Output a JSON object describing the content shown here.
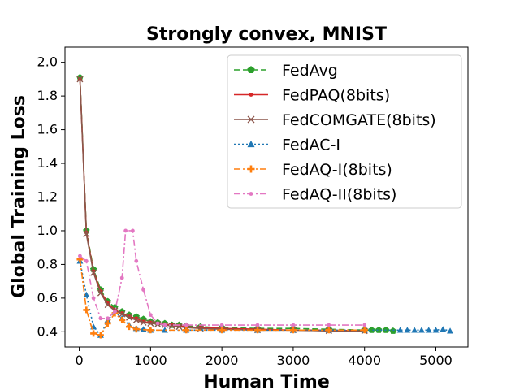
{
  "chart_data": {
    "type": "line",
    "title": "Strongly convex, MNIST",
    "xlabel": "Human Time",
    "ylabel": "Global Training Loss",
    "xlim": [
      -200,
      5450
    ],
    "ylim": [
      0.31,
      2.09
    ],
    "xticks": [
      0,
      1000,
      2000,
      3000,
      4000,
      5000
    ],
    "yticks": [
      0.4,
      0.6,
      0.8,
      1.0,
      1.2,
      1.4,
      1.6,
      1.8,
      2.0
    ],
    "xtick_labels": [
      "0",
      "1000",
      "2000",
      "3000",
      "4000",
      "5000"
    ],
    "ytick_labels": [
      "0.4",
      "0.6",
      "0.8",
      "1.0",
      "1.2",
      "1.4",
      "1.6",
      "1.8",
      "2.0"
    ],
    "legend_position": "upper-right",
    "grid": false,
    "series": [
      {
        "name": "FedAvg",
        "color": "#2ca02c",
        "linestyle": "dashed",
        "marker": "pentagon",
        "x": [
          10,
          100,
          200,
          300,
          400,
          500,
          600,
          700,
          800,
          900,
          1000,
          1100,
          1200,
          1300,
          1400,
          1500,
          1700,
          2000,
          2500,
          3000,
          3500,
          4000,
          4100,
          4200,
          4300,
          4400
        ],
        "y": [
          1.91,
          1.0,
          0.77,
          0.65,
          0.58,
          0.545,
          0.52,
          0.5,
          0.49,
          0.475,
          0.46,
          0.455,
          0.45,
          0.44,
          0.44,
          0.435,
          0.43,
          0.425,
          0.42,
          0.42,
          0.415,
          0.41,
          0.41,
          0.41,
          0.41,
          0.405
        ]
      },
      {
        "name": "FedPAQ(8bits)",
        "color": "#d62728",
        "linestyle": "solid",
        "marker": "dot",
        "x": [
          10,
          100,
          200,
          300,
          400,
          500,
          600,
          700,
          800,
          900,
          1000,
          1100,
          1200,
          1300,
          1400,
          1500,
          1700,
          2000,
          2500,
          3000,
          3500,
          4000
        ],
        "y": [
          1.9,
          0.99,
          0.76,
          0.64,
          0.57,
          0.53,
          0.51,
          0.49,
          0.48,
          0.46,
          0.455,
          0.45,
          0.445,
          0.44,
          0.435,
          0.43,
          0.425,
          0.42,
          0.415,
          0.41,
          0.41,
          0.405
        ]
      },
      {
        "name": "FedCOMGATE(8bits)",
        "color": "#8c564b",
        "linestyle": "solid",
        "marker": "x",
        "x": [
          10,
          100,
          200,
          300,
          400,
          500,
          600,
          700,
          800,
          900,
          1000,
          1100,
          1200,
          1300,
          1400,
          1500,
          1700,
          2000,
          2500,
          3000,
          3500,
          4000
        ],
        "y": [
          1.9,
          0.98,
          0.75,
          0.63,
          0.56,
          0.525,
          0.505,
          0.485,
          0.47,
          0.455,
          0.45,
          0.445,
          0.44,
          0.435,
          0.43,
          0.425,
          0.42,
          0.415,
          0.41,
          0.41,
          0.405,
          0.405
        ]
      },
      {
        "name": "FedAC-I",
        "color": "#1f77b4",
        "linestyle": "dotted",
        "marker": "triangle",
        "x": [
          10,
          100,
          200,
          300,
          400,
          500,
          600,
          700,
          800,
          900,
          1000,
          1200,
          1500,
          2000,
          2500,
          3000,
          3500,
          4000,
          4500,
          4600,
          4700,
          4800,
          4900,
          5000,
          5100,
          5200
        ],
        "y": [
          0.82,
          0.62,
          0.43,
          0.38,
          0.47,
          0.52,
          0.48,
          0.44,
          0.42,
          0.415,
          0.41,
          0.41,
          0.41,
          0.41,
          0.41,
          0.41,
          0.41,
          0.41,
          0.41,
          0.41,
          0.41,
          0.41,
          0.41,
          0.41,
          0.415,
          0.405
        ]
      },
      {
        "name": "FedAQ-I(8bits)",
        "color": "#ff7f0e",
        "linestyle": "dashdot",
        "marker": "plus",
        "x": [
          10,
          100,
          200,
          300,
          400,
          500,
          600,
          700,
          800,
          1000,
          1500,
          2000,
          2500,
          3000,
          3500,
          4000
        ],
        "y": [
          0.83,
          0.53,
          0.39,
          0.38,
          0.45,
          0.51,
          0.47,
          0.43,
          0.415,
          0.41,
          0.41,
          0.41,
          0.41,
          0.41,
          0.41,
          0.41
        ]
      },
      {
        "name": "FedAQ-II(8bits)",
        "color": "#e377c2",
        "linestyle": "dashdot",
        "marker": "dot",
        "x": [
          10,
          100,
          200,
          300,
          400,
          500,
          600,
          650,
          750,
          800,
          900,
          1000,
          1100,
          1200,
          1500,
          2000,
          2500,
          3000,
          3500,
          4000
        ],
        "y": [
          0.85,
          0.82,
          0.6,
          0.48,
          0.48,
          0.52,
          0.72,
          1.0,
          1.0,
          0.82,
          0.65,
          0.5,
          0.45,
          0.44,
          0.44,
          0.44,
          0.44,
          0.44,
          0.44,
          0.44
        ]
      }
    ]
  }
}
